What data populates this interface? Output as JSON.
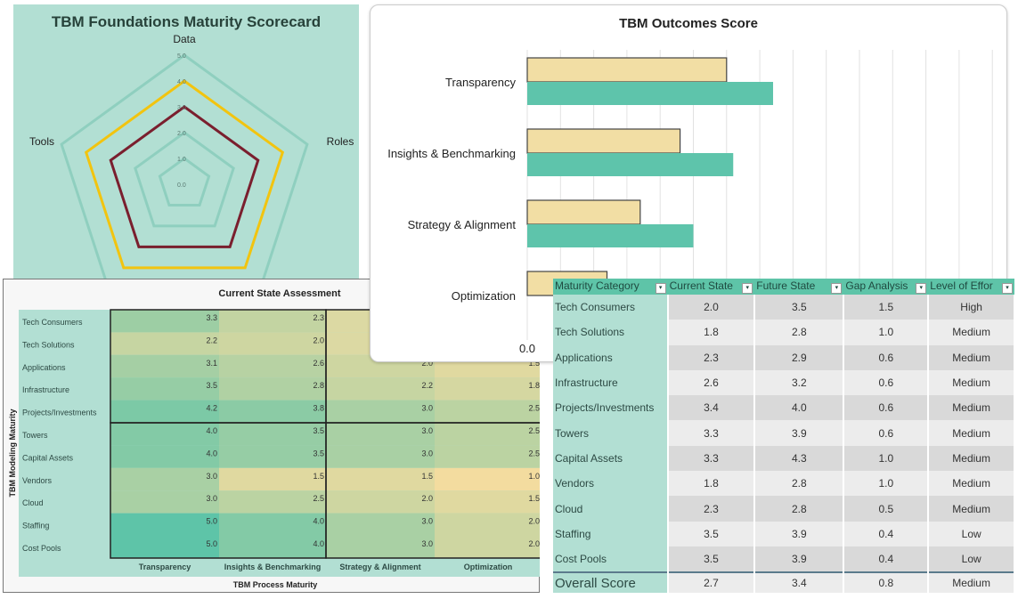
{
  "radar": {
    "title": "TBM Foundations Maturity Scorecard",
    "axes_visible": [
      "Data",
      "Roles",
      "Tools"
    ],
    "ticks": [
      "0.0",
      "1.0",
      "2.0",
      "3.0",
      "4.0",
      "5.0"
    ],
    "range": [
      0,
      5
    ],
    "series": [
      {
        "color": "#f2c40f",
        "values": [
          4,
          4,
          4,
          4,
          4
        ]
      },
      {
        "color": "#7a1f2e",
        "values": [
          3,
          3,
          3,
          3,
          3
        ]
      }
    ]
  },
  "heatmap": {
    "title": "Current State Assessment",
    "ylabel": "TBM Modeling Maturity",
    "xlabel": "TBM Process Maturity",
    "columns": [
      "Transparency",
      "Insights & Benchmarking",
      "Strategy & Alignment",
      "Optimization"
    ],
    "rows": [
      "Tech Consumers",
      "Tech Solutions",
      "Applications",
      "Infrastructure",
      "Projects/Investments",
      "Towers",
      "Capital Assets",
      "Vendors",
      "Cloud",
      "Staffing",
      "Cost Pools"
    ],
    "values": [
      [
        3.3,
        2.3,
        null,
        null
      ],
      [
        2.2,
        2.0,
        null,
        null
      ],
      [
        3.1,
        2.6,
        2.0,
        1.5
      ],
      [
        3.5,
        2.8,
        2.2,
        1.8
      ],
      [
        4.2,
        3.8,
        3.0,
        2.5
      ],
      [
        4.0,
        3.5,
        3.0,
        2.5
      ],
      [
        4.0,
        3.5,
        3.0,
        2.5
      ],
      [
        3.0,
        1.5,
        1.5,
        1.0
      ],
      [
        3.0,
        2.5,
        2.0,
        1.5
      ],
      [
        5.0,
        4.0,
        3.0,
        2.0
      ],
      [
        5.0,
        4.0,
        3.0,
        2.0
      ]
    ],
    "low_color": "#f3dc9f",
    "high_color": "#5ec4a8"
  },
  "chart_data": {
    "type": "bar",
    "orientation": "horizontal",
    "title": "TBM Outcomes Score",
    "categories": [
      "Transparency",
      "Insights & Benchmarking",
      "Strategy & Alignment",
      "Optimization"
    ],
    "series": [
      {
        "color": "#f2dea4",
        "values": [
          3.0,
          2.3,
          1.7,
          1.2
        ]
      },
      {
        "color": "#5ec4ab",
        "values": [
          3.7,
          3.1,
          2.5,
          null
        ]
      }
    ],
    "xlim": [
      0,
      7
    ],
    "tick_labels_visible": [
      "0.0"
    ],
    "grid": true
  },
  "table": {
    "headers": [
      "Maturity Category",
      "Current State",
      "Future State",
      "Gap Analysis",
      "Level of Effor"
    ],
    "rows": [
      [
        "Tech Consumers",
        "2.0",
        "3.5",
        "1.5",
        "High"
      ],
      [
        "Tech Solutions",
        "1.8",
        "2.8",
        "1.0",
        "Medium"
      ],
      [
        "Applications",
        "2.3",
        "2.9",
        "0.6",
        "Medium"
      ],
      [
        "Infrastructure",
        "2.6",
        "3.2",
        "0.6",
        "Medium"
      ],
      [
        "Projects/Investments",
        "3.4",
        "4.0",
        "0.6",
        "Medium"
      ],
      [
        "Towers",
        "3.3",
        "3.9",
        "0.6",
        "Medium"
      ],
      [
        "Capital Assets",
        "3.3",
        "4.3",
        "1.0",
        "Medium"
      ],
      [
        "Vendors",
        "1.8",
        "2.8",
        "1.0",
        "Medium"
      ],
      [
        "Cloud",
        "2.3",
        "2.8",
        "0.5",
        "Medium"
      ],
      [
        "Staffing",
        "3.5",
        "3.9",
        "0.4",
        "Low"
      ],
      [
        "Cost Pools",
        "3.5",
        "3.9",
        "0.4",
        "Low"
      ]
    ],
    "overall": [
      "Overall Score",
      "2.7",
      "3.4",
      "0.8",
      "Medium"
    ]
  }
}
